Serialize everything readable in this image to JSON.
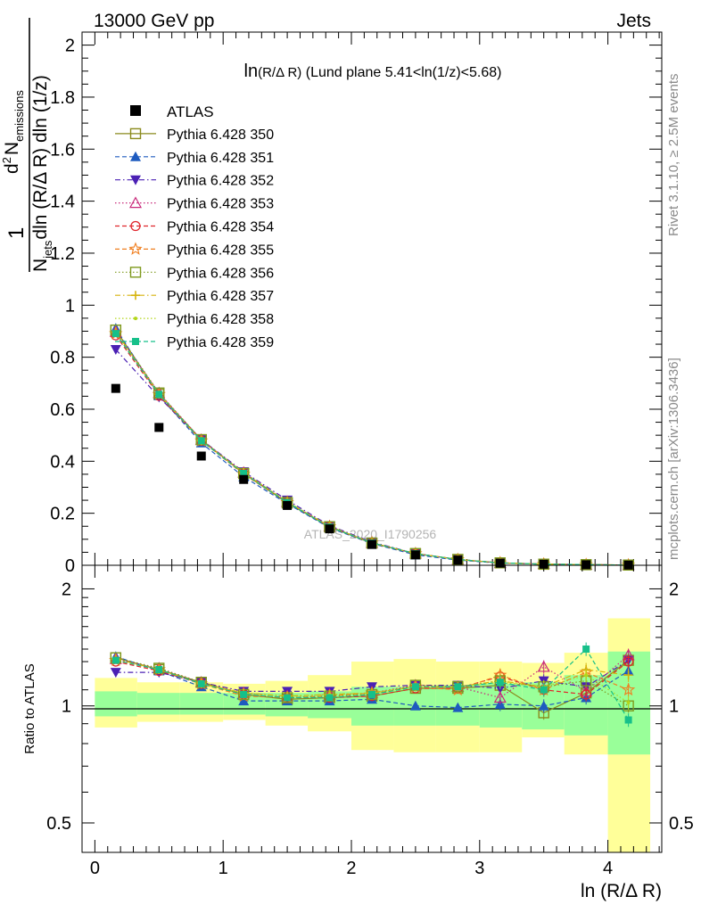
{
  "header": {
    "left": "13000 GeV pp",
    "right": "Jets"
  },
  "side_labels": {
    "rivet": "Rivet 3.1.10, ≥ 2.5M events",
    "mcplots": "mcplots.cern.ch [arXiv:1306.3436]"
  },
  "watermark": "ATLAS_2020_I1790256",
  "chart_data": [
    {
      "type": "scatter",
      "panel": "main",
      "title_main": "ln",
      "title_paren": "(R/Δ R)",
      "title_rest": " (Lund plane 5.41<ln(1/z)<5.68)",
      "ylabel_pre": "1",
      "ylabel_parts": [
        "d",
        "2",
        "N",
        "emissions",
        "N",
        "jets",
        "dln (R/Δ R) dln (1/z)"
      ],
      "ylim": [
        0,
        2.05
      ],
      "xlim": [
        -0.1,
        4.42
      ],
      "yticks": [
        "0",
        "0.2",
        "0.4",
        "0.6",
        "0.8",
        "1",
        "1.2",
        "1.4",
        "1.6",
        "1.8",
        "2"
      ],
      "x": [
        0.163,
        0.5,
        0.83,
        1.16,
        1.5,
        1.83,
        2.16,
        2.5,
        2.83,
        3.16,
        3.5,
        3.83,
        4.16
      ],
      "data": {
        "name": "ATLAS",
        "values": [
          0.68,
          0.53,
          0.42,
          0.33,
          0.23,
          0.14,
          0.08,
          0.04,
          0.02,
          0.008,
          0.004,
          0.002,
          0.0008
        ]
      },
      "mc_values": [
        0.89,
        0.655,
        0.48,
        0.355,
        0.24,
        0.145,
        0.082,
        0.045,
        0.022,
        0.01,
        0.0045,
        0.0022,
        0.001
      ],
      "legend_position": "top-left",
      "series": [
        {
          "name": "Pythia 6.428 350",
          "color": "#8a8a1c",
          "marker": "open-square",
          "dash": "solid"
        },
        {
          "name": "Pythia 6.428 351",
          "color": "#1e5bbf",
          "marker": "triangle-up",
          "dash": "dashed"
        },
        {
          "name": "Pythia 6.428 352",
          "color": "#4b20b4",
          "marker": "triangle-down",
          "dash": "dashdot"
        },
        {
          "name": "Pythia 6.428 353",
          "color": "#c8287a",
          "marker": "open-triangle",
          "dash": "dotted"
        },
        {
          "name": "Pythia 6.428 354",
          "color": "#e0242b",
          "marker": "open-circle",
          "dash": "dashed"
        },
        {
          "name": "Pythia 6.428 355",
          "color": "#f07f20",
          "marker": "open-star",
          "dash": "dashed"
        },
        {
          "name": "Pythia 6.428 356",
          "color": "#7f9a1e",
          "marker": "open-square",
          "dash": "dotted"
        },
        {
          "name": "Pythia 6.428 357",
          "color": "#d6b40c",
          "marker": "cross",
          "dash": "dashdot"
        },
        {
          "name": "Pythia 6.428 358",
          "color": "#b3d61a",
          "marker": "dot",
          "dash": "dotted"
        },
        {
          "name": "Pythia 6.428 359",
          "color": "#16c08a",
          "marker": "square",
          "dash": "dashed"
        }
      ]
    },
    {
      "type": "line",
      "panel": "ratio",
      "ylabel": "Ratio to ATLAS",
      "ylim": [
        0.42,
        2.3
      ],
      "log_y": true,
      "xlabel": "ln (R/Δ R)",
      "xticks": [
        "0",
        "1",
        "2",
        "3",
        "4"
      ],
      "yticks": [
        "0.5",
        "1",
        "2"
      ],
      "bin_edges": [
        0,
        0.33,
        0.66,
        1.0,
        1.33,
        1.66,
        2.0,
        2.33,
        2.66,
        3.0,
        3.33,
        3.66,
        4.0,
        4.33
      ],
      "band_stat_lo": [
        0.94,
        0.95,
        0.95,
        0.95,
        0.94,
        0.93,
        0.89,
        0.89,
        0.89,
        0.88,
        0.87,
        0.84,
        0.75
      ],
      "band_stat_hi": [
        1.09,
        1.08,
        1.08,
        1.08,
        1.08,
        1.09,
        1.12,
        1.12,
        1.13,
        1.14,
        1.15,
        1.2,
        1.38
      ],
      "band_tot_lo": [
        0.88,
        0.91,
        0.91,
        0.92,
        0.89,
        0.86,
        0.77,
        0.76,
        0.76,
        0.76,
        0.83,
        0.75,
        0.4
      ],
      "band_tot_hi": [
        1.18,
        1.15,
        1.15,
        1.14,
        1.16,
        1.2,
        1.3,
        1.32,
        1.3,
        1.3,
        1.29,
        1.37,
        1.68
      ],
      "series": [
        {
          "name": "Pythia 6.428 350",
          "values": [
            1.33,
            1.24,
            1.15,
            1.07,
            1.04,
            1.05,
            1.06,
            1.11,
            1.11,
            1.13,
            0.96,
            1.08,
            1.31
          ]
        },
        {
          "name": "Pythia 6.428 351",
          "values": [
            1.34,
            1.23,
            1.12,
            1.03,
            1.03,
            1.03,
            1.04,
            1.0,
            0.99,
            1.01,
            1.0,
            1.05,
            1.23
          ]
        },
        {
          "name": "Pythia 6.428 352",
          "values": [
            1.22,
            1.22,
            1.15,
            1.09,
            1.09,
            1.09,
            1.12,
            1.13,
            1.13,
            1.11,
            1.16,
            1.12,
            1.31
          ]
        },
        {
          "name": "Pythia 6.428 353",
          "values": [
            1.32,
            1.25,
            1.15,
            1.08,
            1.06,
            1.07,
            1.08,
            1.13,
            1.12,
            1.05,
            1.26,
            1.09,
            1.35
          ]
        },
        {
          "name": "Pythia 6.428 354",
          "values": [
            1.3,
            1.23,
            1.14,
            1.07,
            1.05,
            1.05,
            1.06,
            1.11,
            1.11,
            1.19,
            1.1,
            1.07,
            1.3
          ]
        },
        {
          "name": "Pythia 6.428 355",
          "values": [
            1.31,
            1.24,
            1.14,
            1.06,
            1.05,
            1.06,
            1.08,
            1.12,
            1.1,
            1.2,
            1.1,
            1.22,
            1.1
          ]
        },
        {
          "name": "Pythia 6.428 356",
          "values": [
            1.33,
            1.25,
            1.15,
            1.07,
            1.05,
            1.06,
            1.07,
            1.13,
            1.12,
            1.16,
            1.12,
            1.16,
            1.0
          ]
        },
        {
          "name": "Pythia 6.428 357",
          "values": [
            1.32,
            1.24,
            1.14,
            1.08,
            1.06,
            1.07,
            1.08,
            1.12,
            1.12,
            1.16,
            1.12,
            1.24,
            1.2
          ]
        },
        {
          "name": "Pythia 6.428 358",
          "values": [
            1.31,
            1.24,
            1.14,
            1.08,
            1.06,
            1.07,
            1.08,
            1.12,
            1.12,
            1.15,
            1.12,
            1.2,
            1.02
          ]
        },
        {
          "name": "Pythia 6.428 359",
          "values": [
            1.31,
            1.24,
            1.14,
            1.07,
            1.05,
            1.05,
            1.07,
            1.12,
            1.12,
            1.15,
            1.1,
            1.4,
            0.92
          ]
        }
      ]
    }
  ]
}
